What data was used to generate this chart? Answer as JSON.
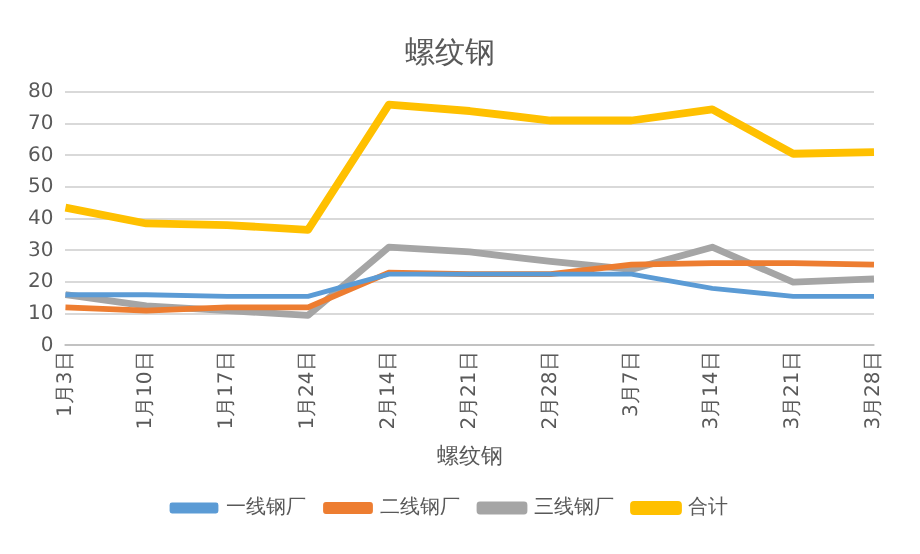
{
  "chart_data": {
    "type": "line",
    "title": "螺纹钢",
    "xlabel": "螺纹钢",
    "categories": [
      "1月3日",
      "1月10日",
      "1月17日",
      "1月24日",
      "2月14日",
      "2月21日",
      "2月28日",
      "3月7日",
      "3月14日",
      "3月21日",
      "3月28日"
    ],
    "series": [
      {
        "name": "一线钢厂",
        "color": "#5b9bd5",
        "values": [
          16,
          16,
          15.5,
          15.5,
          22.5,
          22.5,
          22.5,
          22.5,
          18,
          15.5,
          15.5
        ]
      },
      {
        "name": "二线钢厂",
        "color": "#ed7d31",
        "values": [
          12,
          11,
          12,
          12,
          23,
          22.5,
          22.5,
          25.5,
          26,
          26,
          25.5
        ]
      },
      {
        "name": "三线钢厂",
        "color": "#a5a5a5",
        "values": [
          16,
          12.5,
          11,
          9.5,
          31,
          29.5,
          26.5,
          24,
          31,
          20,
          21
        ]
      },
      {
        "name": "合计",
        "color": "#ffc000",
        "values": [
          43.5,
          38.5,
          38,
          36.5,
          76,
          74,
          71,
          71,
          74.5,
          60.5,
          61
        ]
      }
    ],
    "ylim": [
      0,
      80
    ],
    "yticks": [
      0,
      10,
      20,
      30,
      40,
      50,
      60,
      70,
      80
    ],
    "grid": "y",
    "legend": "bottom",
    "marker": "none",
    "line_style": "solid"
  }
}
